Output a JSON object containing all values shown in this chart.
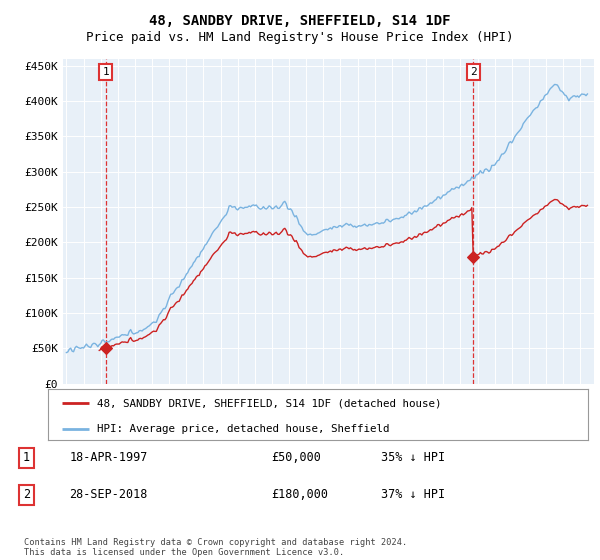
{
  "title": "48, SANDBY DRIVE, SHEFFIELD, S14 1DF",
  "subtitle": "Price paid vs. HM Land Registry's House Price Index (HPI)",
  "title_fontsize": 10,
  "subtitle_fontsize": 9,
  "ylim": [
    0,
    460000
  ],
  "yticks": [
    0,
    50000,
    100000,
    150000,
    200000,
    250000,
    300000,
    350000,
    400000,
    450000
  ],
  "ytick_labels": [
    "£0",
    "£50K",
    "£100K",
    "£150K",
    "£200K",
    "£250K",
    "£300K",
    "£350K",
    "£400K",
    "£450K"
  ],
  "purchase1_date": 1997.3,
  "purchase1_price": 50000,
  "purchase1_label": "1",
  "purchase2_date": 2018.75,
  "purchase2_price": 180000,
  "purchase2_label": "2",
  "vline_color": "#dd3333",
  "marker_color": "#cc2222",
  "hpi_line_color": "#7ab3e0",
  "price_line_color": "#cc2222",
  "background_color": "#ffffff",
  "plot_bg_color": "#e8f0f8",
  "grid_color": "#ffffff",
  "legend_entry1": "48, SANDBY DRIVE, SHEFFIELD, S14 1DF (detached house)",
  "legend_entry2": "HPI: Average price, detached house, Sheffield",
  "table_row1": [
    "1",
    "18-APR-1997",
    "£50,000",
    "35% ↓ HPI"
  ],
  "table_row2": [
    "2",
    "28-SEP-2018",
    "£180,000",
    "37% ↓ HPI"
  ],
  "footnote": "Contains HM Land Registry data © Crown copyright and database right 2024.\nThis data is licensed under the Open Government Licence v3.0.",
  "xmin": 1994.8,
  "xmax": 2025.8,
  "xticks": [
    1995,
    1996,
    1997,
    1998,
    1999,
    2000,
    2001,
    2002,
    2003,
    2004,
    2005,
    2006,
    2007,
    2008,
    2009,
    2010,
    2011,
    2012,
    2013,
    2014,
    2015,
    2016,
    2017,
    2018,
    2019,
    2020,
    2021,
    2022,
    2023,
    2024,
    2025
  ]
}
